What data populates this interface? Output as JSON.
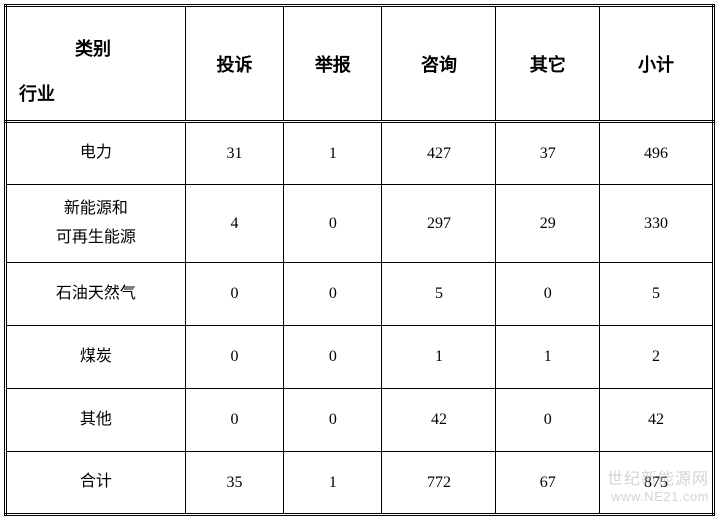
{
  "table": {
    "corner": {
      "category": "类别",
      "industry": "行业"
    },
    "columns": [
      "投诉",
      "举报",
      "咨询",
      "其它",
      "小计"
    ],
    "rows": [
      {
        "label": "电力",
        "values": [
          31,
          1,
          427,
          37,
          496
        ],
        "tall": false
      },
      {
        "label": "新能源和\n可再生能源",
        "values": [
          4,
          0,
          297,
          29,
          330
        ],
        "tall": true
      },
      {
        "label": "石油天然气",
        "values": [
          0,
          0,
          5,
          0,
          5
        ],
        "tall": false
      },
      {
        "label": "煤炭",
        "values": [
          0,
          0,
          1,
          1,
          2
        ],
        "tall": false
      },
      {
        "label": "其他",
        "values": [
          0,
          0,
          42,
          0,
          42
        ],
        "tall": false
      },
      {
        "label": "合计",
        "values": [
          35,
          1,
          772,
          67,
          875
        ],
        "tall": false
      }
    ]
  },
  "watermark": {
    "line1": "世纪新能源网",
    "line2": "www.NE21.com"
  },
  "styling": {
    "background_color": "#ffffff",
    "border_color": "#000000",
    "text_color": "#000000",
    "watermark_color": "#b0b0b0",
    "header_fontsize": 18,
    "cell_fontsize": 16,
    "font_family": "SimSun"
  }
}
